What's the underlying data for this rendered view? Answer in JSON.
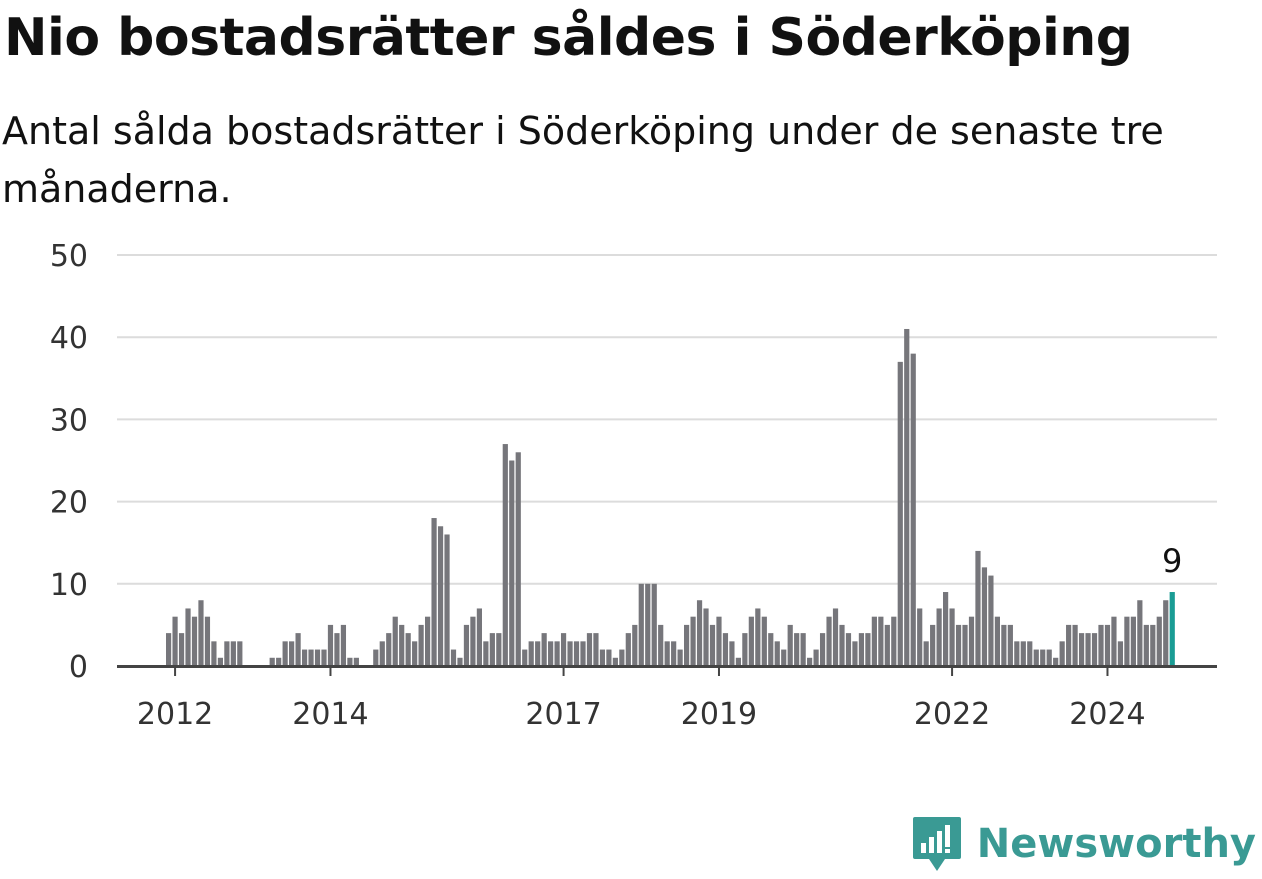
{
  "header": {
    "title": "Nio bostadsrätter såldes i Söderköping",
    "subtitle": "Antal sålda bostadsrätter i Söderköping under de senaste tre månaderna."
  },
  "brand": {
    "name": "Newsworthy",
    "color": "#3a9a94",
    "icon": "newsworthy-logo-icon"
  },
  "colors": {
    "bar": "#76767b",
    "highlight": "#1a9c94",
    "grid": "#dcdcdc"
  },
  "chart_data": {
    "type": "bar",
    "title": "Nio bostadsrätter såldes i Söderköping",
    "subtitle": "Antal sålda bostadsrätter i Söderköping under de senaste tre månaderna.",
    "xlabel": "",
    "ylabel": "",
    "ylim": [
      0,
      50
    ],
    "yticks": [
      "0",
      "10",
      "20",
      "30",
      "40",
      "50"
    ],
    "grid": true,
    "xticks": [
      {
        "label": "2012",
        "index": 1
      },
      {
        "label": "2014",
        "index": 25
      },
      {
        "label": "2017",
        "index": 61
      },
      {
        "label": "2019",
        "index": 85
      },
      {
        "label": "2022",
        "index": 121
      },
      {
        "label": "2024",
        "index": 145
      }
    ],
    "values": [
      4,
      6,
      4,
      7,
      6,
      8,
      6,
      3,
      1,
      3,
      3,
      3,
      0,
      0,
      0,
      0,
      1,
      1,
      3,
      3,
      4,
      2,
      2,
      2,
      2,
      5,
      4,
      5,
      1,
      1,
      0,
      0,
      2,
      3,
      4,
      6,
      5,
      4,
      3,
      5,
      6,
      18,
      17,
      16,
      2,
      1,
      5,
      6,
      7,
      3,
      4,
      4,
      27,
      25,
      26,
      2,
      3,
      3,
      4,
      3,
      3,
      4,
      3,
      3,
      3,
      4,
      4,
      2,
      2,
      1,
      2,
      4,
      5,
      10,
      10,
      10,
      5,
      3,
      3,
      2,
      5,
      6,
      8,
      7,
      5,
      6,
      4,
      3,
      1,
      4,
      6,
      7,
      6,
      4,
      3,
      2,
      5,
      4,
      4,
      1,
      2,
      4,
      6,
      7,
      5,
      4,
      3,
      4,
      4,
      6,
      6,
      5,
      6,
      37,
      41,
      38,
      7,
      3,
      5,
      7,
      9,
      7,
      5,
      5,
      6,
      14,
      12,
      11,
      6,
      5,
      5,
      3,
      3,
      3,
      2,
      2,
      2,
      1,
      3,
      5,
      5,
      4,
      4,
      4,
      5,
      5,
      6,
      3,
      6,
      6,
      8,
      5,
      5,
      6,
      8,
      9
    ],
    "highlight_index": 155,
    "highlight_label": "9"
  }
}
